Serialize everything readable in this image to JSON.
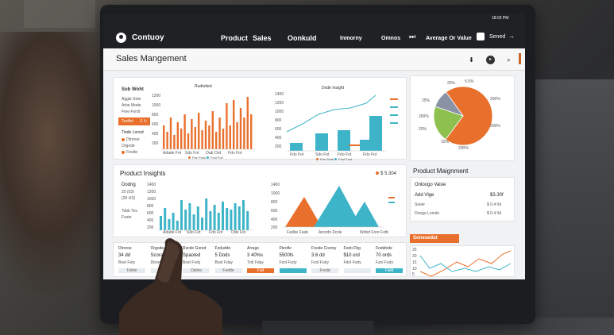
{
  "topbar": {
    "brand": "Contuoy",
    "nav": [
      "Product",
      "Sales",
      "Oonkuld",
      "Inmorny",
      "Omnos"
    ],
    "average_label": "Average Or Value",
    "send_label": "Sened",
    "time": "18:02 PM"
  },
  "page_title": "Sales Mangement",
  "sales_panel": {
    "left_title": "Sob Woht",
    "left_items": [
      "Aggie Sote",
      "Arbe Mode",
      "Fme Fordt"
    ],
    "left_button": "Teoflet",
    "left_button_icons": "£  ↻",
    "left_section": "Tiede Lonod",
    "left_legend": [
      "Dtroroe",
      "Orgode",
      "Feode"
    ],
    "chart1_title": "Rudtutted",
    "chart1_xlabels": [
      "Adade Fot",
      "Sdo Fot",
      "Oab Ord",
      "Fdo Fot"
    ],
    "chart1_ticks": [
      "1200",
      "1000",
      "800",
      "600",
      "400",
      "200"
    ],
    "chart1_legend": [
      "Fbe Fotol",
      "Feol Foit"
    ],
    "chart2_title": "Dode Insight",
    "chart2_ticks": [
      "1400",
      "1200",
      "1000",
      "800",
      "600",
      "400",
      "200"
    ],
    "chart2_legend_items": [
      "",
      "",
      "",
      ""
    ],
    "chart2_xlabels": [
      "Fdo Fot",
      "Sdo Fot",
      "Fdo Fot",
      "Fdo Fot"
    ],
    "chart2_bottom_legend": [
      "Fbe Fbde",
      "Feol Foot"
    ]
  },
  "pie": {
    "labels": [
      "25%",
      "5.5%",
      "25%",
      "200%",
      "200%",
      "20%",
      "15%",
      "200%"
    ]
  },
  "insights": {
    "title": "Product Insights",
    "legend_label": "$ 5.304",
    "left_labels": [
      "Dodng",
      "20 (03)",
      "(30 US)",
      "Tebb Tes",
      "Fuste"
    ],
    "ticks": [
      "1400",
      "1200",
      "1000",
      "800",
      "600",
      "400",
      "200"
    ],
    "xlabels": [
      "Adade Fot",
      "Sdo Fot",
      "Fdo Fot",
      "Ode Fot"
    ],
    "mountain_ticks": [
      "1400",
      "1000",
      "800",
      "600",
      "400",
      "200"
    ],
    "mountain_labels": [
      "Fadbe Fuab",
      "Anordo Dorle",
      "Wobd Fore Fotb"
    ]
  },
  "table": {
    "columns": [
      {
        "head": "Dtroroe",
        "value": "34 dd",
        "sub": "Boel Fety",
        "chip": "Febte",
        "chip_color": "#e9ecef"
      },
      {
        "head": "Orgode",
        "value": "Scorald",
        "sub": "Dtroroe",
        "chip": "Brede",
        "chip_color": "#e9ecef"
      },
      {
        "head": "Rscde Gored",
        "value": "Spaoted",
        "sub": "Boel Fvdy",
        "chip": "Dsblw",
        "chip_color": "#e9ecef"
      },
      {
        "head": "Fodudde",
        "value": "5 Dods",
        "sub": "Bool Fday",
        "chip": "Fedde",
        "chip_color": "#e9ecef"
      },
      {
        "head": "Arrage",
        "value": "3 40%s",
        "sub": "Trdl Fday",
        "chip": "Fod",
        "chip_color": "#e9702c"
      },
      {
        "head": "Fbrofle",
        "value": "5500fs",
        "sub": "Fzol Fody",
        "chip": "",
        "chip_color": "#3eb4c9"
      },
      {
        "head": "Foode Coorsy",
        "value": "3.6 dd",
        "sub": "Fzol Fody",
        "chip": "Fredd",
        "chip_color": "#e9ecef"
      },
      {
        "head": "Fodo Fbg",
        "value": "$10 ord",
        "sub": "Fdol Fody",
        "chip": "",
        "chip_color": "#e9ecef"
      },
      {
        "head": "Fodsfode",
        "value": "70 ords",
        "sub": "Fzol Fody",
        "chip": "Fuild",
        "chip_color": "#3eb4c9"
      }
    ]
  },
  "product_mgmt": {
    "title": "Product Maignment",
    "rows": [
      {
        "label": "Onloogo Value",
        "value": ""
      },
      {
        "label": "Add Vlge",
        "value": "$3.30f"
      },
      {
        "label": "Soele",
        "value": "$ 0.4 0d"
      },
      {
        "label": "Dooge Lonole",
        "value": "$ 0.4 0d"
      }
    ],
    "button": "Sonesedut",
    "mini_ticks": [
      "25",
      "20",
      "15",
      "10",
      "5"
    ]
  },
  "colors": {
    "orange": "#e9702c",
    "teal": "#3eb4c9",
    "green": "#8dc04f",
    "slate": "#8a93a6"
  }
}
